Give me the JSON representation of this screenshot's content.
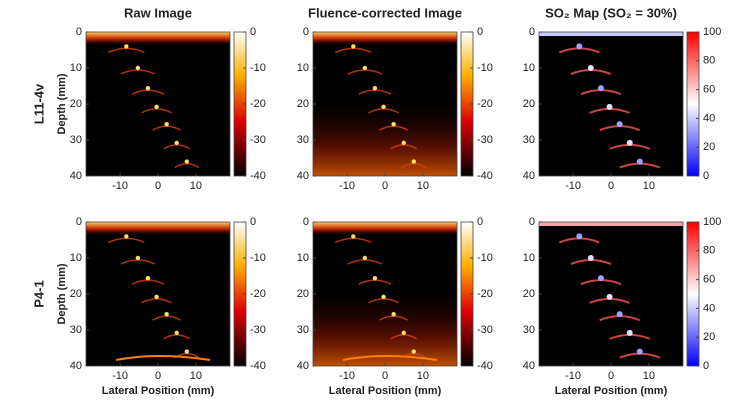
{
  "chart_data": [
    {
      "type": "image",
      "title": "Raw Image",
      "row_label": "L11-4v",
      "ylabel": "Depth (mm)",
      "xlim": [
        -19,
        19
      ],
      "xticks": [
        -10,
        0,
        10
      ],
      "ylim": [
        40,
        0
      ],
      "yticks": [
        0,
        10,
        20,
        30,
        40
      ],
      "colorbar": {
        "colormap": "hot",
        "lim": [
          -40,
          0
        ],
        "ticks": [
          0,
          -10,
          -20,
          -30,
          -40
        ]
      }
    },
    {
      "type": "image",
      "title": "Fluence-corrected Image",
      "xlim": [
        -19,
        19
      ],
      "xticks": [
        -10,
        0,
        10
      ],
      "ylim": [
        40,
        0
      ],
      "yticks": [
        0,
        10,
        20,
        30,
        40
      ],
      "colorbar": {
        "colormap": "hot",
        "lim": [
          -40,
          0
        ],
        "ticks": [
          0,
          -10,
          -20,
          -30,
          -40
        ]
      }
    },
    {
      "type": "image",
      "title": "SO₂ Map (SO₂ = 30%)",
      "xlim": [
        -19,
        19
      ],
      "xticks": [
        -10,
        0,
        10
      ],
      "ylim": [
        40,
        0
      ],
      "yticks": [
        0,
        10,
        20,
        30,
        40
      ],
      "colorbar": {
        "colormap": "bwr",
        "lim": [
          0,
          100
        ],
        "ticks": [
          0,
          20,
          40,
          60,
          80,
          100
        ]
      }
    },
    {
      "type": "image",
      "row_label": "P4-1",
      "ylabel": "Depth (mm)",
      "xlabel": "Lateral Position (mm)",
      "xlim": [
        -19,
        19
      ],
      "xticks": [
        -10,
        0,
        10
      ],
      "ylim": [
        40,
        0
      ],
      "yticks": [
        0,
        10,
        20,
        30,
        40
      ],
      "colorbar": {
        "colormap": "hot",
        "lim": [
          -40,
          0
        ],
        "ticks": [
          0,
          -10,
          -20,
          -30,
          -40
        ]
      }
    },
    {
      "type": "image",
      "xlabel": "Lateral Position (mm)",
      "xlim": [
        -19,
        19
      ],
      "xticks": [
        -10,
        0,
        10
      ],
      "ylim": [
        40,
        0
      ],
      "yticks": [
        0,
        10,
        20,
        30,
        40
      ],
      "colorbar": {
        "colormap": "hot",
        "lim": [
          -40,
          0
        ],
        "ticks": [
          0,
          -10,
          -20,
          -30,
          -40
        ]
      }
    },
    {
      "type": "image",
      "xlabel": "Lateral Position (mm)",
      "xlim": [
        -19,
        19
      ],
      "xticks": [
        -10,
        0,
        10
      ],
      "ylim": [
        40,
        0
      ],
      "yticks": [
        0,
        10,
        20,
        30,
        40
      ],
      "colorbar": {
        "colormap": "bwr",
        "lim": [
          0,
          100
        ],
        "ticks": [
          0,
          20,
          40,
          60,
          80,
          100
        ]
      }
    }
  ]
}
